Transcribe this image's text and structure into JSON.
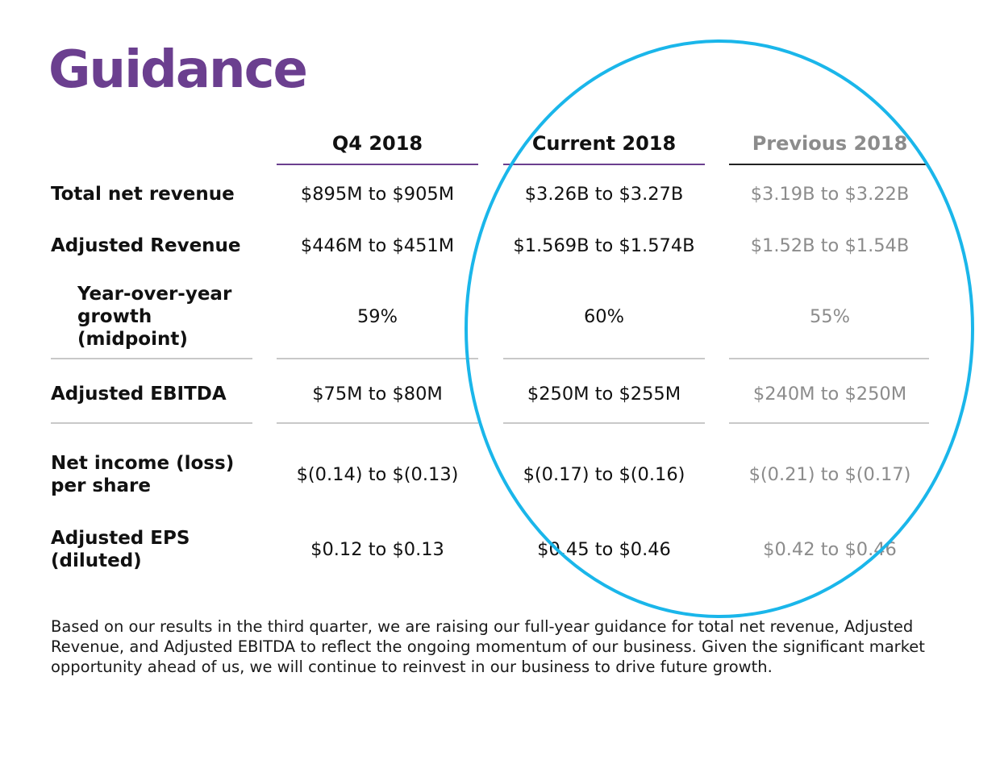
{
  "title": "Guidance",
  "columns": [
    {
      "label": "Q4 2018"
    },
    {
      "label": "Current 2018"
    },
    {
      "label": "Previous 2018"
    }
  ],
  "rows": [
    {
      "label": "Total net revenue",
      "values": [
        "$895M to $905M",
        "$3.26B to $3.27B",
        "$3.19B to $3.22B"
      ]
    },
    {
      "label": "Adjusted Revenue",
      "values": [
        "$446M to $451M",
        "$1.569B to $1.574B",
        "$1.52B to $1.54B"
      ]
    },
    {
      "label": "Year-over-year growth (midpoint)",
      "values": [
        "59%",
        "60%",
        "55%"
      ]
    },
    {
      "label": "Adjusted EBITDA",
      "values": [
        "$75M to $80M",
        "$250M to $255M",
        "$240M to $250M"
      ]
    },
    {
      "label": "Net income (loss) per share",
      "values": [
        "$(0.14) to $(0.13)",
        "$(0.17) to $(0.16)",
        "$(0.21) to $(0.17)"
      ]
    },
    {
      "label": "Adjusted EPS (diluted)",
      "values": [
        "$0.12 to $0.13",
        "$0.45 to $0.46",
        "$0.42 to $0.46"
      ]
    }
  ],
  "footnote": "Based on our results in the third quarter, we are raising our full-year guidance for total net revenue, Adjusted Revenue, and Adjusted EBITDA to reflect the ongoing momentum of our business. Given the significant market opportunity ahead of us, we will continue to reinvest in our business to drive future growth.",
  "colors": {
    "brand_purple": "#6b3f8f",
    "previous_gray": "#8c8c8c",
    "highlight_circle": "#1ab6ea"
  }
}
